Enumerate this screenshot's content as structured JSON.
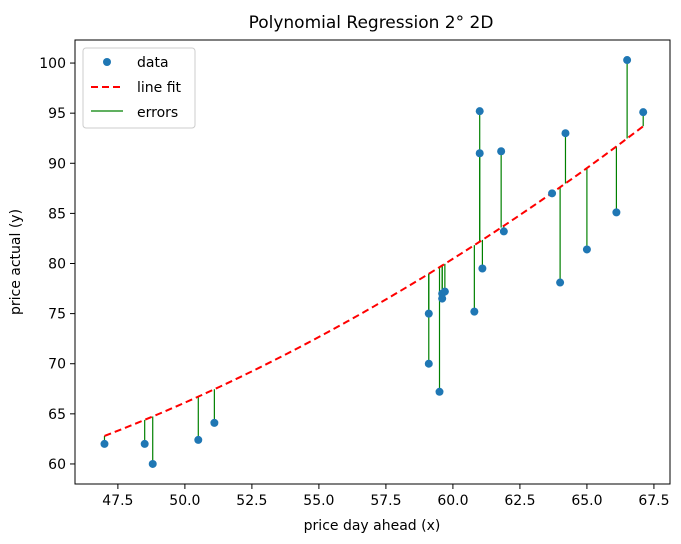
{
  "chart_data": {
    "type": "scatter",
    "title": "Polynomial Regression 2° 2D",
    "xlabel": "price day ahead (x)",
    "ylabel": "price actual (y)",
    "xlim": [
      45.9,
      68.1
    ],
    "ylim": [
      58.0,
      102.3
    ],
    "xticks": [
      47.5,
      50.0,
      52.5,
      55.0,
      57.5,
      60.0,
      62.5,
      65.0,
      67.5
    ],
    "xtick_labels": [
      "47.5",
      "50.0",
      "52.5",
      "55.0",
      "57.5",
      "60.0",
      "62.5",
      "65.0",
      "67.5"
    ],
    "yticks": [
      60,
      65,
      70,
      75,
      80,
      85,
      90,
      95,
      100
    ],
    "ytick_labels": [
      "60",
      "65",
      "70",
      "75",
      "80",
      "85",
      "90",
      "95",
      "100"
    ],
    "legend": {
      "position": "top-left",
      "entries": [
        "data",
        "line fit",
        "errors"
      ]
    },
    "grid": false,
    "series": [
      {
        "name": "data",
        "kind": "scatter",
        "color": "#1f77b4",
        "x": [
          47.0,
          48.5,
          48.8,
          50.5,
          51.1,
          59.1,
          59.1,
          59.5,
          59.6,
          59.6,
          59.7,
          60.8,
          61.0,
          61.0,
          61.1,
          61.8,
          61.9,
          63.7,
          64.0,
          64.2,
          65.0,
          66.1,
          66.5,
          67.1
        ],
        "y": [
          62.0,
          62.0,
          60.0,
          62.4,
          64.1,
          75.0,
          70.0,
          67.2,
          77.0,
          76.5,
          77.2,
          75.2,
          95.2,
          91.0,
          79.5,
          91.2,
          83.2,
          87.0,
          78.1,
          93.0,
          81.4,
          85.1,
          100.3,
          95.1
        ]
      },
      {
        "name": "line fit",
        "kind": "line",
        "style": "dashed",
        "color": "#ff0000",
        "poly_coeffs": [
          0.025,
          -1.315,
          69.37
        ]
      },
      {
        "name": "errors",
        "kind": "segments",
        "color": "#008000"
      }
    ]
  }
}
